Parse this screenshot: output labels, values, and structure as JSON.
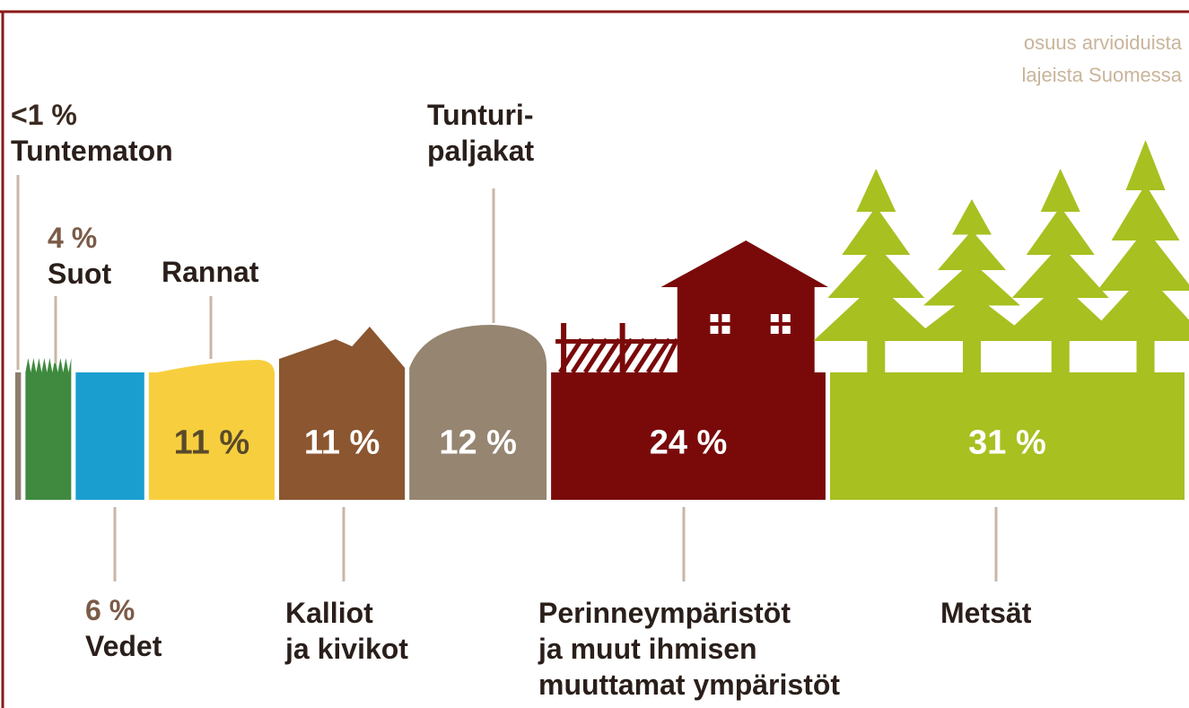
{
  "chart_data": {
    "type": "proportion-strip",
    "subtitle": "osuus arvioiduista\nlajeista Suomessa",
    "categories": [
      "Tuntematon",
      "Suot",
      "Vedet",
      "Rannat",
      "Kalliot\nja kivikot",
      "Tunturi-\npaljakat",
      "Perinneympäristöt\nja muut ihmisen\nmuuttamat ympäristöt",
      "Metsät"
    ],
    "values": [
      0.5,
      4,
      6,
      11,
      11,
      12,
      24,
      31
    ],
    "value_labels": [
      "<1 %",
      "4 %",
      "6 %",
      "11 %",
      "11 %",
      "12 %",
      "24 %",
      "31 %"
    ],
    "colors": [
      "#8c7d70",
      "#3f8a3f",
      "#1a9ed0",
      "#f7cf3e",
      "#8b5630",
      "#958571",
      "#7a0a0a",
      "#a8c020"
    ]
  }
}
